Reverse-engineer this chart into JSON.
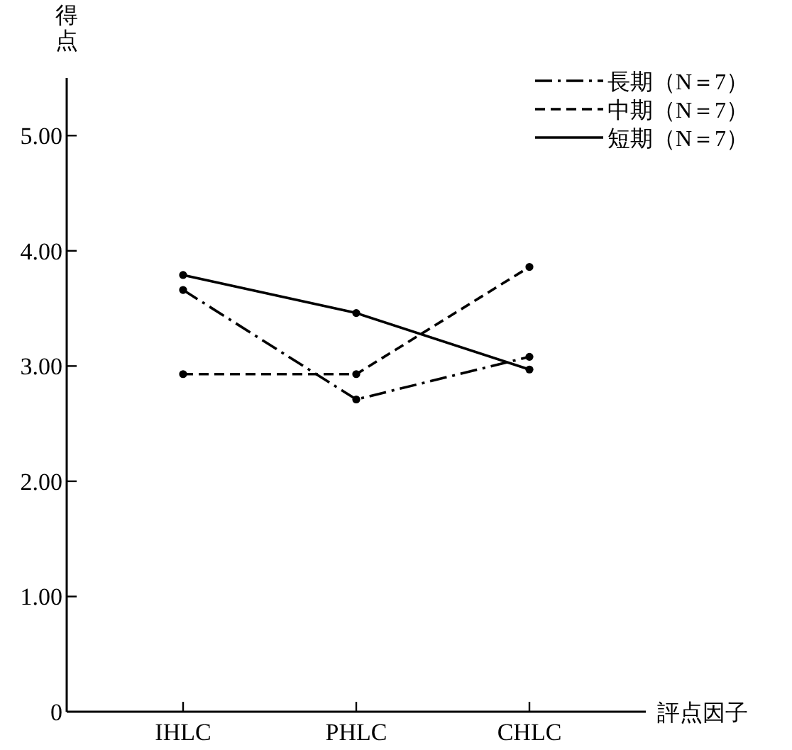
{
  "chart_data": {
    "type": "line",
    "ylabel": "得点",
    "xlabel": "評点因子",
    "categories": [
      "IHLC",
      "PHLC",
      "CHLC"
    ],
    "series": [
      {
        "name": "長期（N＝7）",
        "color": "#000000",
        "line_style": "dashdot",
        "values": [
          3.66,
          2.71,
          3.08
        ]
      },
      {
        "name": "中期（N＝7）",
        "color": "#000000",
        "line_style": "dashed",
        "values": [
          2.93,
          2.93,
          3.86
        ]
      },
      {
        "name": "短期（N＝7）",
        "color": "#000000",
        "line_style": "solid",
        "values": [
          3.79,
          3.46,
          2.97
        ]
      }
    ],
    "ylim": [
      0,
      5.5
    ],
    "yticks": [
      {
        "value": 0,
        "label": "0"
      },
      {
        "value": 1,
        "label": "1.00"
      },
      {
        "value": 2,
        "label": "2.00"
      },
      {
        "value": 3,
        "label": "3.00"
      },
      {
        "value": 4,
        "label": "4.00"
      },
      {
        "value": 5,
        "label": "5.00"
      }
    ],
    "marker": "circle",
    "legend": "top right"
  }
}
